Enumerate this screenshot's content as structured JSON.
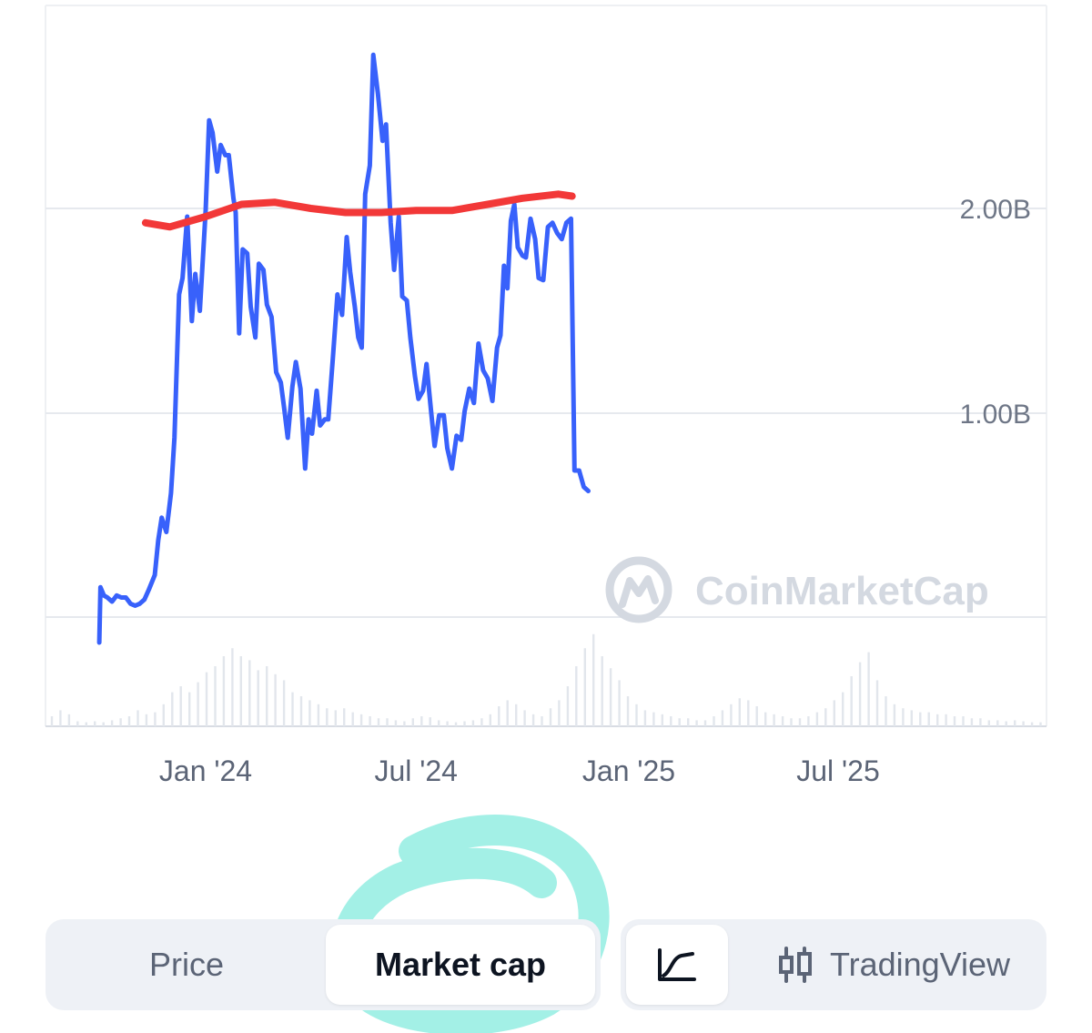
{
  "chart_data": {
    "type": "line",
    "y_unit": "market cap (B USD)",
    "ylim": [
      -0.99,
      2.79
    ],
    "grid": true,
    "y_ticks": [
      {
        "value": 2.0,
        "label": "2.00B"
      },
      {
        "value": 1.0,
        "label": "1.00B"
      }
    ],
    "x_ticks": [
      {
        "date": "2024-01-01",
        "label": "Jan '24"
      },
      {
        "date": "2024-07-01",
        "label": "Jul '24"
      },
      {
        "date": "2025-01-01",
        "label": "Jan '25"
      },
      {
        "date": "2025-07-01",
        "label": "Jul '25"
      }
    ],
    "series": [
      {
        "color": "#3861fb",
        "points": [
          [
            "2023-10-01",
            -0.12
          ],
          [
            "2023-10-02",
            0.15
          ],
          [
            "2023-10-05",
            0.11
          ],
          [
            "2023-10-08",
            0.1
          ],
          [
            "2023-10-12",
            0.08
          ],
          [
            "2023-10-16",
            0.11
          ],
          [
            "2023-10-20",
            0.1
          ],
          [
            "2023-10-24",
            0.1
          ],
          [
            "2023-10-28",
            0.07
          ],
          [
            "2023-11-01",
            0.06
          ],
          [
            "2023-11-05",
            0.07
          ],
          [
            "2023-11-09",
            0.09
          ],
          [
            "2023-11-13",
            0.14
          ],
          [
            "2023-11-18",
            0.21
          ],
          [
            "2023-11-21",
            0.38
          ],
          [
            "2023-11-24",
            0.49
          ],
          [
            "2023-11-28",
            0.42
          ],
          [
            "2023-12-02",
            0.61
          ],
          [
            "2023-12-05",
            0.88
          ],
          [
            "2023-12-09",
            1.58
          ],
          [
            "2023-12-12",
            1.66
          ],
          [
            "2023-12-16",
            1.96
          ],
          [
            "2023-12-20",
            1.45
          ],
          [
            "2023-12-23",
            1.68
          ],
          [
            "2023-12-27",
            1.5
          ],
          [
            "2024-01-01",
            1.99
          ],
          [
            "2024-01-04",
            2.43
          ],
          [
            "2024-01-07",
            2.37
          ],
          [
            "2024-01-11",
            2.18
          ],
          [
            "2024-01-14",
            2.31
          ],
          [
            "2024-01-18",
            2.26
          ],
          [
            "2024-01-21",
            2.26
          ],
          [
            "2024-01-25",
            2.05
          ],
          [
            "2024-01-27",
            1.98
          ],
          [
            "2024-01-30",
            1.39
          ],
          [
            "2024-02-02",
            1.8
          ],
          [
            "2024-02-06",
            1.78
          ],
          [
            "2024-02-09",
            1.52
          ],
          [
            "2024-02-13",
            1.37
          ],
          [
            "2024-02-16",
            1.73
          ],
          [
            "2024-02-20",
            1.7
          ],
          [
            "2024-02-23",
            1.53
          ],
          [
            "2024-02-27",
            1.47
          ],
          [
            "2024-03-02",
            1.2
          ],
          [
            "2024-03-06",
            1.15
          ],
          [
            "2024-03-09",
            1.02
          ],
          [
            "2024-03-12",
            0.88
          ],
          [
            "2024-03-16",
            1.13
          ],
          [
            "2024-03-19",
            1.25
          ],
          [
            "2024-03-23",
            1.12
          ],
          [
            "2024-03-27",
            0.73
          ],
          [
            "2024-03-30",
            0.97
          ],
          [
            "2024-04-02",
            0.9
          ],
          [
            "2024-04-06",
            1.11
          ],
          [
            "2024-04-09",
            0.94
          ],
          [
            "2024-04-13",
            0.97
          ],
          [
            "2024-04-16",
            0.97
          ],
          [
            "2024-04-20",
            1.27
          ],
          [
            "2024-04-24",
            1.58
          ],
          [
            "2024-04-28",
            1.48
          ],
          [
            "2024-05-02",
            1.86
          ],
          [
            "2024-05-05",
            1.69
          ],
          [
            "2024-05-09",
            1.52
          ],
          [
            "2024-05-12",
            1.37
          ],
          [
            "2024-05-15",
            1.32
          ],
          [
            "2024-05-18",
            2.07
          ],
          [
            "2024-05-22",
            2.21
          ],
          [
            "2024-05-25",
            2.75
          ],
          [
            "2024-05-29",
            2.56
          ],
          [
            "2024-06-02",
            2.33
          ],
          [
            "2024-06-05",
            2.41
          ],
          [
            "2024-06-09",
            1.93
          ],
          [
            "2024-06-12",
            1.7
          ],
          [
            "2024-06-16",
            1.96
          ],
          [
            "2024-06-19",
            1.57
          ],
          [
            "2024-06-23",
            1.55
          ],
          [
            "2024-06-26",
            1.37
          ],
          [
            "2024-06-30",
            1.18
          ],
          [
            "2024-07-03",
            1.07
          ],
          [
            "2024-07-07",
            1.11
          ],
          [
            "2024-07-10",
            1.24
          ],
          [
            "2024-07-14",
            1.01
          ],
          [
            "2024-07-17",
            0.84
          ],
          [
            "2024-07-21",
            0.99
          ],
          [
            "2024-07-25",
            0.99
          ],
          [
            "2024-07-28",
            0.83
          ],
          [
            "2024-08-01",
            0.73
          ],
          [
            "2024-08-05",
            0.89
          ],
          [
            "2024-08-09",
            0.87
          ],
          [
            "2024-08-12",
            1.01
          ],
          [
            "2024-08-16",
            1.12
          ],
          [
            "2024-08-20",
            1.05
          ],
          [
            "2024-08-24",
            1.34
          ],
          [
            "2024-08-28",
            1.21
          ],
          [
            "2024-09-01",
            1.17
          ],
          [
            "2024-09-05",
            1.06
          ],
          [
            "2024-09-09",
            1.32
          ],
          [
            "2024-09-12",
            1.38
          ],
          [
            "2024-09-15",
            1.72
          ],
          [
            "2024-09-18",
            1.61
          ],
          [
            "2024-09-21",
            1.94
          ],
          [
            "2024-09-24",
            2.02
          ],
          [
            "2024-09-27",
            1.81
          ],
          [
            "2024-10-01",
            1.77
          ],
          [
            "2024-10-04",
            1.76
          ],
          [
            "2024-10-08",
            1.95
          ],
          [
            "2024-10-12",
            1.85
          ],
          [
            "2024-10-15",
            1.66
          ],
          [
            "2024-10-19",
            1.65
          ],
          [
            "2024-10-23",
            1.91
          ],
          [
            "2024-10-27",
            1.93
          ],
          [
            "2024-10-31",
            1.88
          ],
          [
            "2024-11-04",
            1.85
          ],
          [
            "2024-11-08",
            1.93
          ],
          [
            "2024-11-12",
            1.95
          ],
          [
            "2024-11-15",
            0.72
          ],
          [
            "2024-11-19",
            0.72
          ],
          [
            "2024-11-23",
            0.64
          ],
          [
            "2024-11-27",
            0.62
          ]
        ]
      },
      {
        "color": "#f23838",
        "points": [
          [
            "2023-11-10",
            1.93
          ],
          [
            "2023-12-01",
            1.91
          ],
          [
            "2024-01-01",
            1.96
          ],
          [
            "2024-02-01",
            2.02
          ],
          [
            "2024-03-01",
            2.03
          ],
          [
            "2024-04-01",
            2.0
          ],
          [
            "2024-05-01",
            1.98
          ],
          [
            "2024-06-01",
            1.98
          ],
          [
            "2024-07-01",
            1.99
          ],
          [
            "2024-08-01",
            1.99
          ],
          [
            "2024-09-01",
            2.02
          ],
          [
            "2024-10-01",
            2.05
          ],
          [
            "2024-11-01",
            2.07
          ],
          [
            "2024-11-13",
            2.06
          ]
        ]
      }
    ],
    "volume": [
      0.1,
      0.16,
      0.12,
      0.05,
      0.04,
      0.05,
      0.04,
      0.06,
      0.08,
      0.1,
      0.16,
      0.12,
      0.14,
      0.22,
      0.34,
      0.4,
      0.34,
      0.44,
      0.54,
      0.6,
      0.7,
      0.78,
      0.7,
      0.66,
      0.56,
      0.6,
      0.52,
      0.46,
      0.34,
      0.3,
      0.26,
      0.22,
      0.18,
      0.16,
      0.18,
      0.14,
      0.12,
      0.1,
      0.08,
      0.08,
      0.06,
      0.05,
      0.08,
      0.1,
      0.09,
      0.06,
      0.05,
      0.04,
      0.05,
      0.06,
      0.08,
      0.12,
      0.2,
      0.26,
      0.22,
      0.16,
      0.12,
      0.1,
      0.18,
      0.26,
      0.4,
      0.6,
      0.78,
      0.92,
      0.7,
      0.58,
      0.46,
      0.3,
      0.22,
      0.16,
      0.14,
      0.12,
      0.1,
      0.08,
      0.08,
      0.06,
      0.06,
      0.1,
      0.16,
      0.22,
      0.28,
      0.26,
      0.2,
      0.14,
      0.12,
      0.1,
      0.08,
      0.08,
      0.1,
      0.14,
      0.18,
      0.26,
      0.34,
      0.5,
      0.64,
      0.74,
      0.46,
      0.3,
      0.22,
      0.18,
      0.16,
      0.14,
      0.14,
      0.12,
      0.12,
      0.1,
      0.1,
      0.08,
      0.08,
      0.06,
      0.06,
      0.05,
      0.06,
      0.05,
      0.04,
      0.04
    ],
    "watermark": "CoinMarketCap"
  },
  "controls": {
    "toggle": {
      "price_label": "Price",
      "market_cap_label": "Market cap",
      "selected": "Market cap"
    },
    "view": {
      "line_icon": "line-chart-icon",
      "tradingview_icon": "candlestick-icon",
      "tradingview_label": "TradingView",
      "selected": "line"
    }
  },
  "annotation": {
    "color": "#a3f0e6"
  }
}
